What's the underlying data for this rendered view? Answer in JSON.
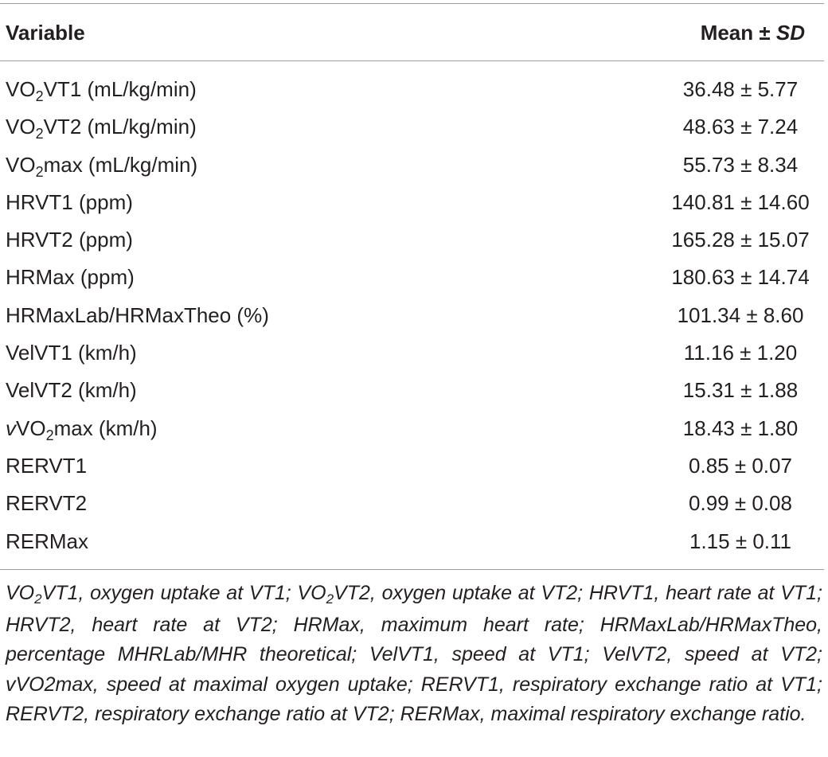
{
  "table": {
    "headers": {
      "variable": "Variable",
      "mean_prefix": "Mean ± ",
      "mean_sd": "SD"
    },
    "rows": [
      {
        "pre": "VO",
        "sub": "2",
        "post": "VT1 (mL/kg/min)",
        "italic_prefix": "",
        "value": "36.48 ± 5.77"
      },
      {
        "pre": "VO",
        "sub": "2",
        "post": "VT2 (mL/kg/min)",
        "italic_prefix": "",
        "value": "48.63 ± 7.24"
      },
      {
        "pre": "VO",
        "sub": "2",
        "post": "max (mL/kg/min)",
        "italic_prefix": "",
        "value": "55.73 ± 8.34"
      },
      {
        "pre": "HRVT1 (ppm)",
        "sub": "",
        "post": "",
        "italic_prefix": "",
        "value": "140.81 ± 14.60"
      },
      {
        "pre": "HRVT2 (ppm)",
        "sub": "",
        "post": "",
        "italic_prefix": "",
        "value": "165.28 ± 15.07"
      },
      {
        "pre": "HRMax (ppm)",
        "sub": "",
        "post": "",
        "italic_prefix": "",
        "value": "180.63 ± 14.74"
      },
      {
        "pre": "HRMaxLab/HRMaxTheo (%)",
        "sub": "",
        "post": "",
        "italic_prefix": "",
        "value": "101.34 ± 8.60"
      },
      {
        "pre": "VelVT1 (km/h)",
        "sub": "",
        "post": "",
        "italic_prefix": "",
        "value": "11.16 ± 1.20"
      },
      {
        "pre": "VelVT2 (km/h)",
        "sub": "",
        "post": "",
        "italic_prefix": "",
        "value": "15.31 ± 1.88"
      },
      {
        "pre": "VO",
        "sub": "2",
        "post": "max (km/h)",
        "italic_prefix": "v",
        "value": "18.43 ± 1.80"
      },
      {
        "pre": "RERVT1",
        "sub": "",
        "post": "",
        "italic_prefix": "",
        "value": "0.85 ± 0.07"
      },
      {
        "pre": "RERVT2",
        "sub": "",
        "post": "",
        "italic_prefix": "",
        "value": "0.99 ± 0.08"
      },
      {
        "pre": "RERMax",
        "sub": "",
        "post": "",
        "italic_prefix": "",
        "value": "1.15 ± 0.11"
      }
    ],
    "footnote": {
      "part1": "VO",
      "sub1": "2",
      "part2": "VT1, oxygen uptake at VT1; VO",
      "sub2": "2",
      "part3": "VT2, oxygen uptake at VT2; HRVT1, heart rate at VT1; HRVT2, heart rate at VT2; HRMax, maximum heart rate; HRMaxLab/HRMaxTheo, percentage MHRLab/MHR theoretical; VelVT1, speed at VT1; VelVT2, speed at VT2; vVO2max, speed at maximal oxygen uptake; RERVT1, respiratory exchange ratio at VT1; RERVT2, respiratory exchange ratio at VT2; RERMax, maximal respiratory exchange ratio."
    }
  }
}
